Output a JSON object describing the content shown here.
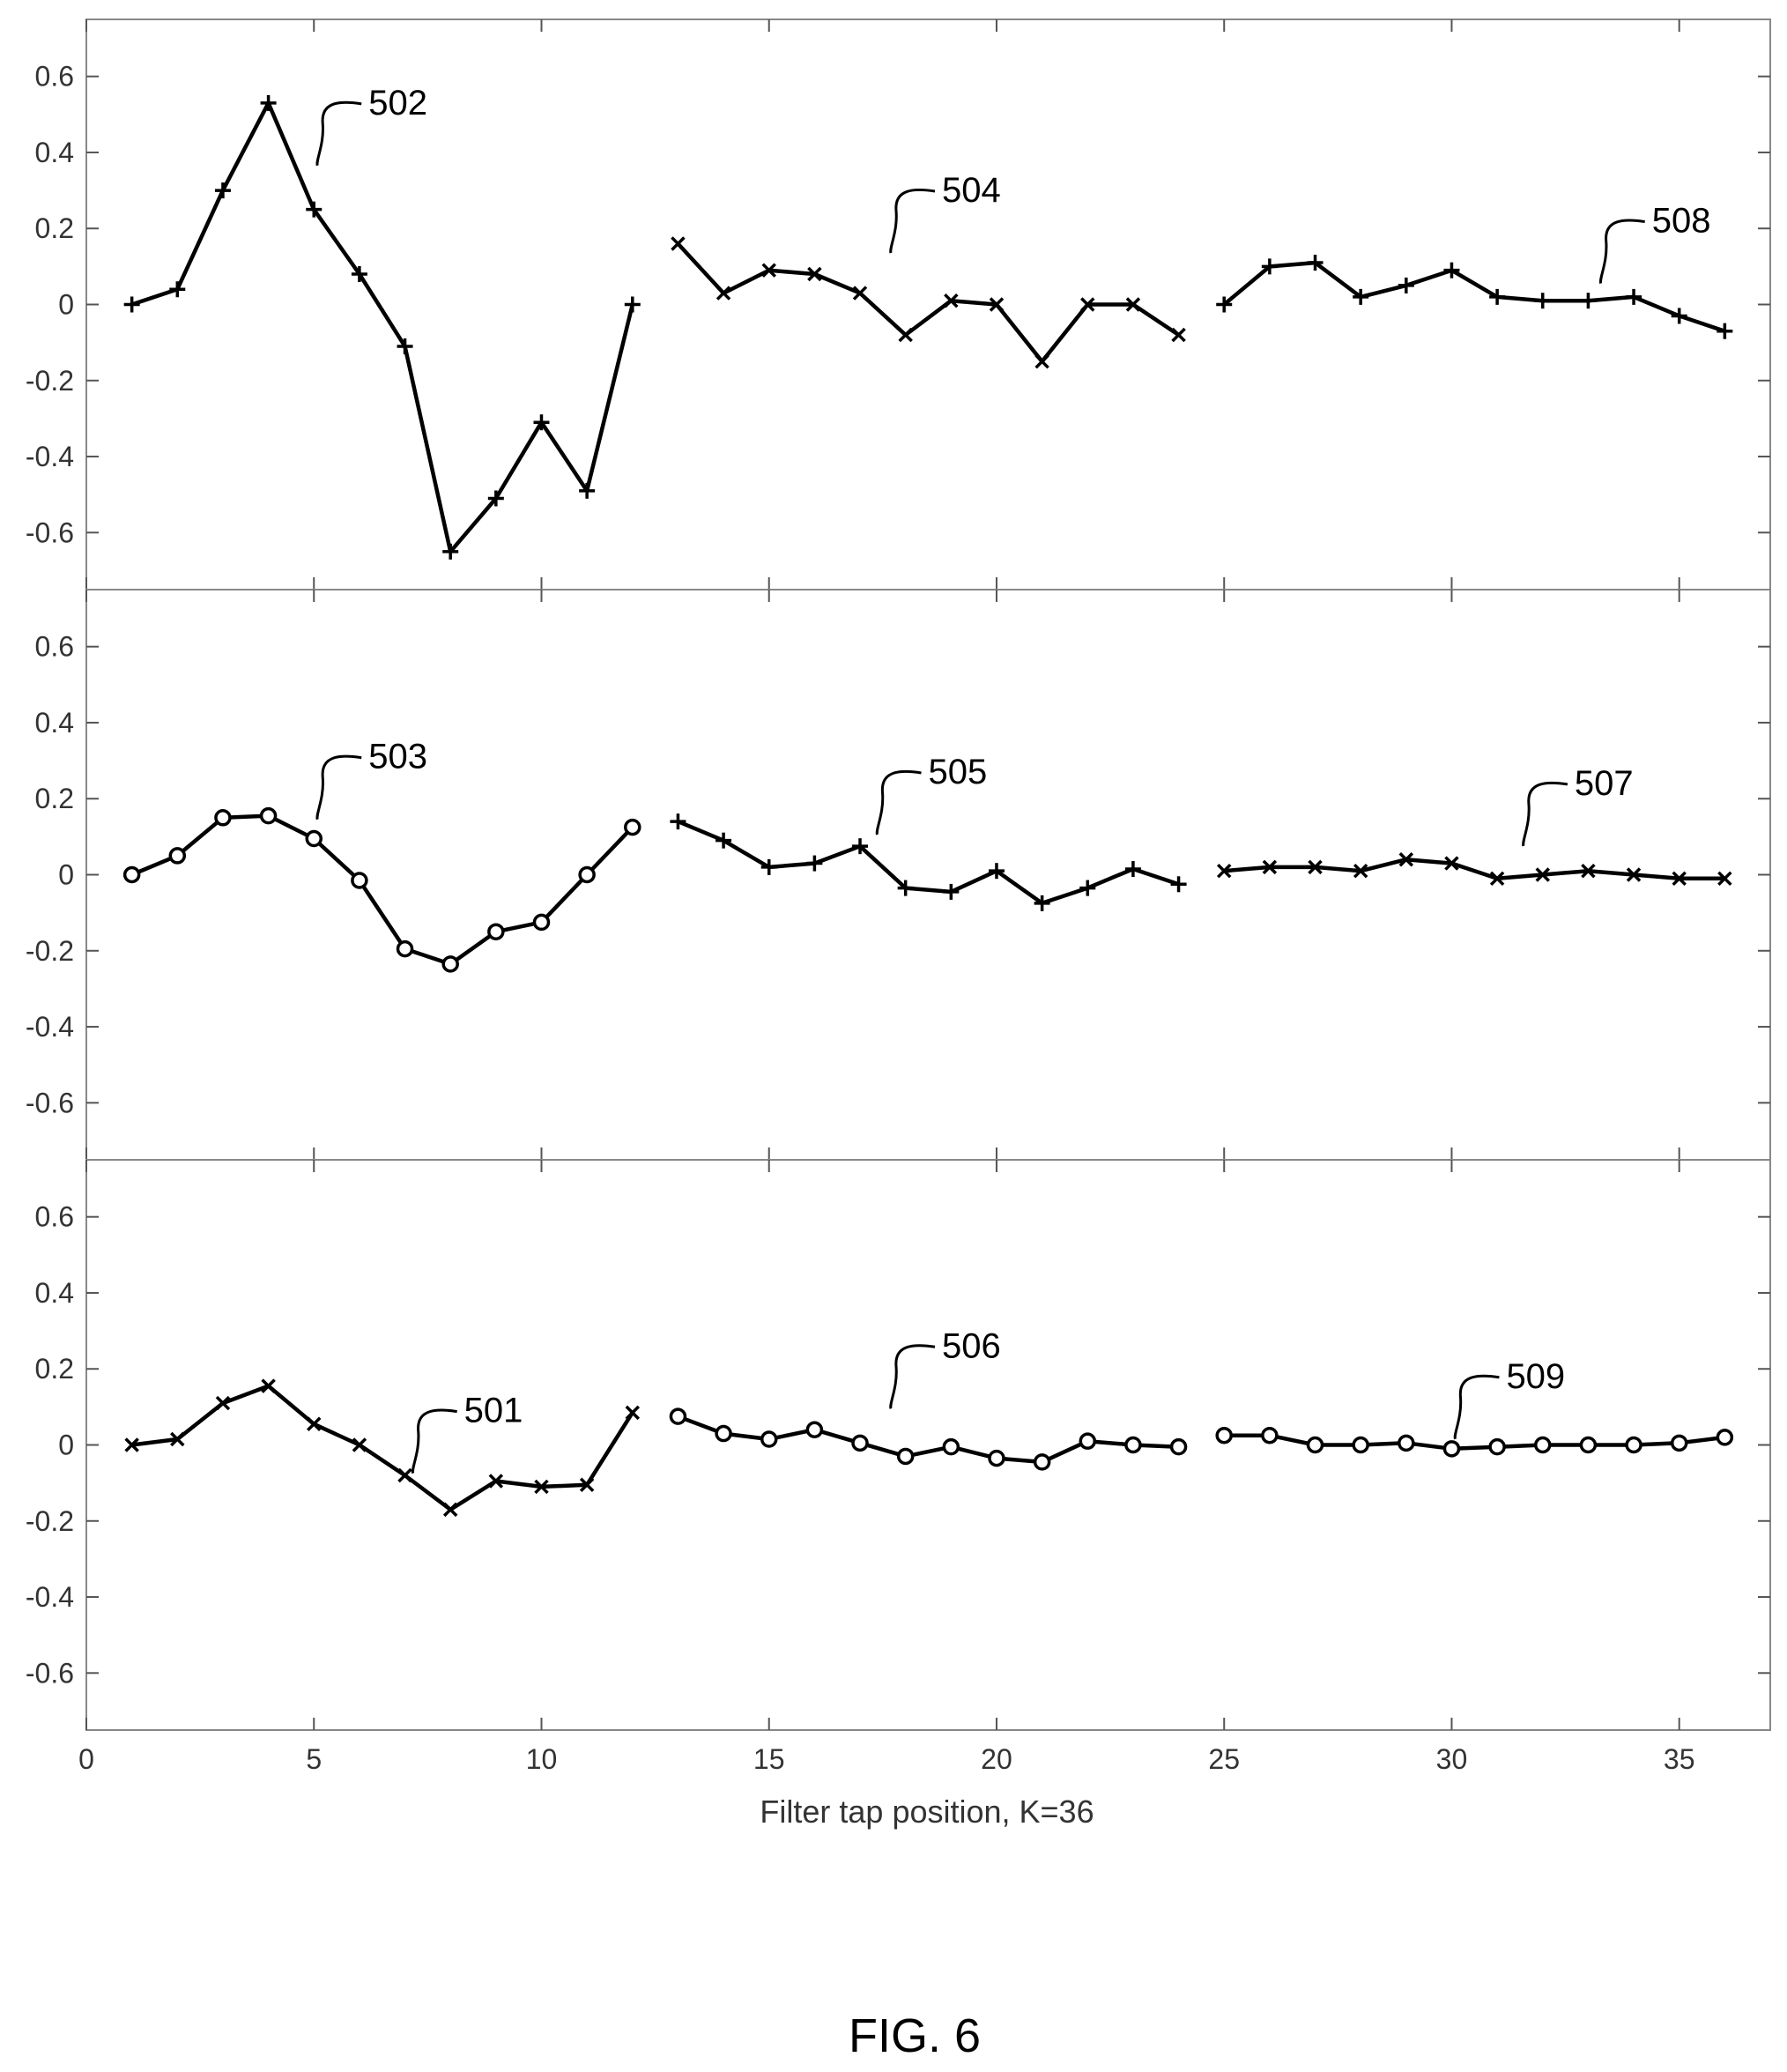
{
  "figure": {
    "caption": "FIG. 6"
  },
  "chart_data": {
    "type": "line",
    "xlabel": "Filter tap position, K=36",
    "xlim": [
      0,
      37
    ],
    "ylim": [
      -0.75,
      0.75
    ],
    "x_ticks": [
      "0",
      "5",
      "10",
      "15",
      "20",
      "25",
      "30",
      "35"
    ],
    "y_ticks": [
      "0.6",
      "0.4",
      "0.2",
      "0",
      "-0.2",
      "-0.4",
      "-0.6"
    ],
    "x_tick_values": [
      0,
      5,
      10,
      15,
      20,
      25,
      30,
      35
    ],
    "y_tick_values": [
      0.6,
      0.4,
      0.2,
      0,
      -0.2,
      -0.4,
      -0.6
    ],
    "grid": false,
    "panels": [
      {
        "series": [
          {
            "marker": "plus",
            "label": "502",
            "label_at": [
              6.2,
              0.5
            ],
            "x": [
              1,
              2,
              3,
              4,
              5,
              6,
              7,
              8,
              9,
              10,
              11,
              12
            ],
            "values": [
              0.0,
              0.04,
              0.3,
              0.53,
              0.25,
              0.08,
              -0.11,
              -0.65,
              -0.51,
              -0.31,
              -0.49,
              0.0
            ]
          },
          {
            "marker": "x",
            "label": "504",
            "label_at": [
              18.8,
              0.27
            ],
            "x": [
              13,
              14,
              15,
              16,
              17,
              18,
              19,
              20,
              21,
              22,
              23,
              24
            ],
            "values": [
              0.16,
              0.03,
              0.09,
              0.08,
              0.03,
              -0.08,
              0.01,
              0.0,
              -0.15,
              0.0,
              0.0,
              -0.08
            ]
          },
          {
            "marker": "plus",
            "label": "508",
            "label_at": [
              34.4,
              0.19
            ],
            "x": [
              25,
              26,
              27,
              28,
              29,
              30,
              31,
              32,
              33,
              34,
              35,
              36
            ],
            "values": [
              0.0,
              0.1,
              0.11,
              0.02,
              0.05,
              0.09,
              0.02,
              0.01,
              0.01,
              0.02,
              -0.03,
              -0.07
            ]
          }
        ]
      },
      {
        "series": [
          {
            "marker": "circle",
            "label": "503",
            "label_at": [
              6.2,
              0.28
            ],
            "x": [
              1,
              2,
              3,
              4,
              5,
              6,
              7,
              8,
              9,
              10,
              11,
              12
            ],
            "values": [
              0.0,
              0.05,
              0.15,
              0.155,
              0.095,
              -0.015,
              -0.195,
              -0.235,
              -0.15,
              -0.125,
              0.0,
              0.125
            ]
          },
          {
            "marker": "plus",
            "label": "505",
            "label_at": [
              18.5,
              0.24
            ],
            "x": [
              13,
              14,
              15,
              16,
              17,
              18,
              19,
              20,
              21,
              22,
              23,
              24
            ],
            "values": [
              0.14,
              0.09,
              0.02,
              0.03,
              0.075,
              -0.035,
              -0.045,
              0.01,
              -0.075,
              -0.035,
              0.015,
              -0.025
            ]
          },
          {
            "marker": "x",
            "label": "507",
            "label_at": [
              32.7,
              0.21
            ],
            "x": [
              25,
              26,
              27,
              28,
              29,
              30,
              31,
              32,
              33,
              34,
              35,
              36
            ],
            "values": [
              0.01,
              0.02,
              0.02,
              0.01,
              0.04,
              0.03,
              -0.01,
              0.0,
              0.01,
              0.0,
              -0.01,
              -0.01
            ]
          }
        ]
      },
      {
        "series": [
          {
            "marker": "x",
            "label": "501",
            "label_at": [
              8.3,
              0.06
            ],
            "x": [
              1,
              2,
              3,
              4,
              5,
              6,
              7,
              8,
              9,
              10,
              11,
              12
            ],
            "values": [
              0.0,
              0.015,
              0.11,
              0.155,
              0.055,
              0.0,
              -0.08,
              -0.17,
              -0.095,
              -0.11,
              -0.105,
              0.085
            ]
          },
          {
            "marker": "circle",
            "label": "506",
            "label_at": [
              18.8,
              0.23
            ],
            "x": [
              13,
              14,
              15,
              16,
              17,
              18,
              19,
              20,
              21,
              22,
              23,
              24
            ],
            "values": [
              0.075,
              0.03,
              0.015,
              0.04,
              0.005,
              -0.03,
              -0.005,
              -0.035,
              -0.045,
              0.01,
              0.0,
              -0.005
            ]
          },
          {
            "marker": "circle",
            "label": "509",
            "label_at": [
              31.2,
              0.15
            ],
            "x": [
              25,
              26,
              27,
              28,
              29,
              30,
              31,
              32,
              33,
              34,
              35,
              36
            ],
            "values": [
              0.025,
              0.025,
              0.0,
              0.0,
              0.005,
              -0.01,
              -0.005,
              0.0,
              0.0,
              0.0,
              0.005,
              0.02
            ]
          }
        ]
      }
    ]
  }
}
